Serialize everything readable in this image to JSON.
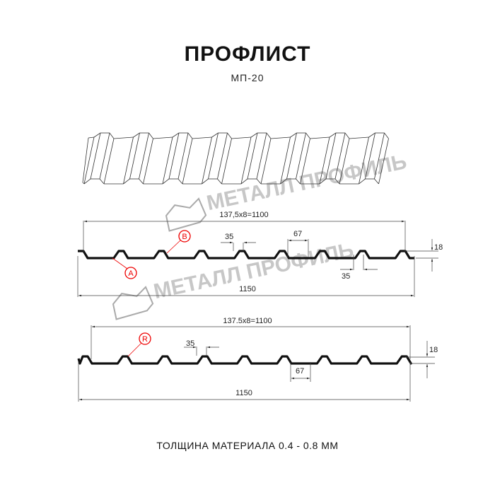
{
  "title": "ПРОФЛИСТ",
  "subtitle": "МП-20",
  "footer": "ТОЛЩИНА МАТЕРИАЛА 0.4 - 0.8 ММ",
  "watermark": "МЕТАЛЛ ПРОФИЛЬ",
  "colors": {
    "profile": "#111111",
    "marker": "#e00000",
    "watermark": "#9a9a9a"
  },
  "profile1": {
    "pitch_label": "137,5x8=1100",
    "total_label": "1150",
    "top_width_label": "35",
    "bottom_width_label": "35",
    "valley_label": "67",
    "height_label": "18",
    "marker_a": "A",
    "marker_b": "B"
  },
  "profile2": {
    "pitch_label": "137.5x8=1100",
    "total_label": "1150",
    "top_width_label": "35",
    "valley_label": "67",
    "height_label": "18",
    "marker_r": "R"
  }
}
